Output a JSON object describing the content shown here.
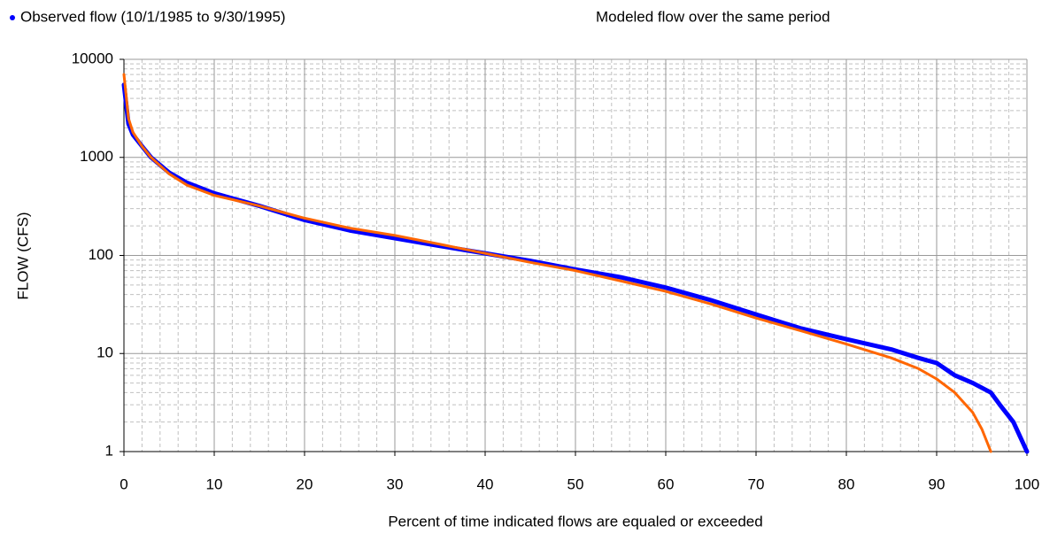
{
  "chart_data": {
    "type": "line",
    "x_label": "Percent of time indicated flows are equaled or exceeded",
    "y_label": "FLOW (CFS)",
    "log_y": true,
    "grid": true,
    "minor_grid": true,
    "xlim": [
      0,
      100
    ],
    "xticks": [
      0,
      10,
      20,
      30,
      40,
      50,
      60,
      70,
      80,
      90,
      100
    ],
    "ylim": [
      1,
      10000
    ],
    "yticks": [
      1,
      10,
      100,
      1000,
      10000
    ],
    "series": [
      {
        "name": "Observed flow  (10/1/1985 to 9/30/1995)",
        "color": "#0000ff",
        "x": [
          0,
          0.5,
          1,
          2,
          3,
          5,
          7,
          10,
          15,
          20,
          25,
          30,
          35,
          40,
          45,
          50,
          55,
          60,
          65,
          70,
          75,
          80,
          85,
          88,
          90,
          92,
          94,
          96,
          97,
          98.5,
          100
        ],
        "values": [
          5500,
          2200,
          1700,
          1300,
          1000,
          700,
          550,
          430,
          320,
          230,
          180,
          150,
          125,
          105,
          88,
          72,
          60,
          47,
          35,
          25,
          18,
          14,
          11,
          9,
          8,
          6,
          5,
          4,
          3,
          2,
          1
        ]
      },
      {
        "name": "Modeled flow over the same period",
        "color": "#ff6600",
        "x": [
          0,
          0.5,
          1,
          2,
          3,
          5,
          7,
          10,
          15,
          20,
          25,
          30,
          35,
          40,
          45,
          50,
          55,
          60,
          65,
          70,
          75,
          80,
          85,
          88,
          90,
          92,
          94,
          95,
          96
        ],
        "values": [
          7000,
          2500,
          1800,
          1300,
          1000,
          680,
          520,
          410,
          320,
          240,
          190,
          160,
          130,
          105,
          85,
          70,
          55,
          43,
          32,
          23,
          17,
          12.5,
          9,
          7,
          5.5,
          4,
          2.5,
          1.7,
          1
        ]
      }
    ]
  }
}
